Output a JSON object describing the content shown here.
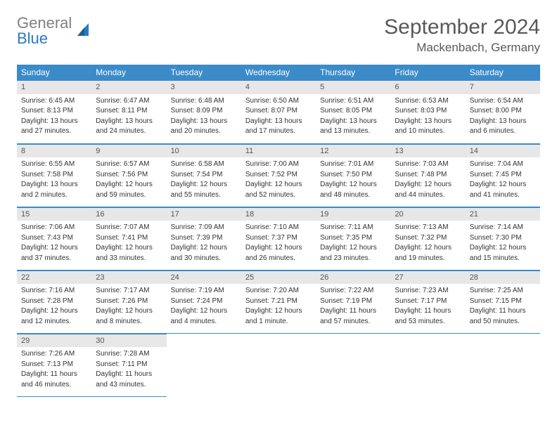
{
  "logo": {
    "text1": "General",
    "text2": "Blue"
  },
  "title": "September 2024",
  "location": "Mackenbach, Germany",
  "header_bg": "#3b8bc9",
  "daynum_bg": "#e7e7e7",
  "weekdays": [
    "Sunday",
    "Monday",
    "Tuesday",
    "Wednesday",
    "Thursday",
    "Friday",
    "Saturday"
  ],
  "weeks": [
    [
      {
        "n": "1",
        "sr": "Sunrise: 6:45 AM",
        "ss": "Sunset: 8:13 PM",
        "d1": "Daylight: 13 hours",
        "d2": "and 27 minutes."
      },
      {
        "n": "2",
        "sr": "Sunrise: 6:47 AM",
        "ss": "Sunset: 8:11 PM",
        "d1": "Daylight: 13 hours",
        "d2": "and 24 minutes."
      },
      {
        "n": "3",
        "sr": "Sunrise: 6:48 AM",
        "ss": "Sunset: 8:09 PM",
        "d1": "Daylight: 13 hours",
        "d2": "and 20 minutes."
      },
      {
        "n": "4",
        "sr": "Sunrise: 6:50 AM",
        "ss": "Sunset: 8:07 PM",
        "d1": "Daylight: 13 hours",
        "d2": "and 17 minutes."
      },
      {
        "n": "5",
        "sr": "Sunrise: 6:51 AM",
        "ss": "Sunset: 8:05 PM",
        "d1": "Daylight: 13 hours",
        "d2": "and 13 minutes."
      },
      {
        "n": "6",
        "sr": "Sunrise: 6:53 AM",
        "ss": "Sunset: 8:03 PM",
        "d1": "Daylight: 13 hours",
        "d2": "and 10 minutes."
      },
      {
        "n": "7",
        "sr": "Sunrise: 6:54 AM",
        "ss": "Sunset: 8:00 PM",
        "d1": "Daylight: 13 hours",
        "d2": "and 6 minutes."
      }
    ],
    [
      {
        "n": "8",
        "sr": "Sunrise: 6:55 AM",
        "ss": "Sunset: 7:58 PM",
        "d1": "Daylight: 13 hours",
        "d2": "and 2 minutes."
      },
      {
        "n": "9",
        "sr": "Sunrise: 6:57 AM",
        "ss": "Sunset: 7:56 PM",
        "d1": "Daylight: 12 hours",
        "d2": "and 59 minutes."
      },
      {
        "n": "10",
        "sr": "Sunrise: 6:58 AM",
        "ss": "Sunset: 7:54 PM",
        "d1": "Daylight: 12 hours",
        "d2": "and 55 minutes."
      },
      {
        "n": "11",
        "sr": "Sunrise: 7:00 AM",
        "ss": "Sunset: 7:52 PM",
        "d1": "Daylight: 12 hours",
        "d2": "and 52 minutes."
      },
      {
        "n": "12",
        "sr": "Sunrise: 7:01 AM",
        "ss": "Sunset: 7:50 PM",
        "d1": "Daylight: 12 hours",
        "d2": "and 48 minutes."
      },
      {
        "n": "13",
        "sr": "Sunrise: 7:03 AM",
        "ss": "Sunset: 7:48 PM",
        "d1": "Daylight: 12 hours",
        "d2": "and 44 minutes."
      },
      {
        "n": "14",
        "sr": "Sunrise: 7:04 AM",
        "ss": "Sunset: 7:45 PM",
        "d1": "Daylight: 12 hours",
        "d2": "and 41 minutes."
      }
    ],
    [
      {
        "n": "15",
        "sr": "Sunrise: 7:06 AM",
        "ss": "Sunset: 7:43 PM",
        "d1": "Daylight: 12 hours",
        "d2": "and 37 minutes."
      },
      {
        "n": "16",
        "sr": "Sunrise: 7:07 AM",
        "ss": "Sunset: 7:41 PM",
        "d1": "Daylight: 12 hours",
        "d2": "and 33 minutes."
      },
      {
        "n": "17",
        "sr": "Sunrise: 7:09 AM",
        "ss": "Sunset: 7:39 PM",
        "d1": "Daylight: 12 hours",
        "d2": "and 30 minutes."
      },
      {
        "n": "18",
        "sr": "Sunrise: 7:10 AM",
        "ss": "Sunset: 7:37 PM",
        "d1": "Daylight: 12 hours",
        "d2": "and 26 minutes."
      },
      {
        "n": "19",
        "sr": "Sunrise: 7:11 AM",
        "ss": "Sunset: 7:35 PM",
        "d1": "Daylight: 12 hours",
        "d2": "and 23 minutes."
      },
      {
        "n": "20",
        "sr": "Sunrise: 7:13 AM",
        "ss": "Sunset: 7:32 PM",
        "d1": "Daylight: 12 hours",
        "d2": "and 19 minutes."
      },
      {
        "n": "21",
        "sr": "Sunrise: 7:14 AM",
        "ss": "Sunset: 7:30 PM",
        "d1": "Daylight: 12 hours",
        "d2": "and 15 minutes."
      }
    ],
    [
      {
        "n": "22",
        "sr": "Sunrise: 7:16 AM",
        "ss": "Sunset: 7:28 PM",
        "d1": "Daylight: 12 hours",
        "d2": "and 12 minutes."
      },
      {
        "n": "23",
        "sr": "Sunrise: 7:17 AM",
        "ss": "Sunset: 7:26 PM",
        "d1": "Daylight: 12 hours",
        "d2": "and 8 minutes."
      },
      {
        "n": "24",
        "sr": "Sunrise: 7:19 AM",
        "ss": "Sunset: 7:24 PM",
        "d1": "Daylight: 12 hours",
        "d2": "and 4 minutes."
      },
      {
        "n": "25",
        "sr": "Sunrise: 7:20 AM",
        "ss": "Sunset: 7:21 PM",
        "d1": "Daylight: 12 hours",
        "d2": "and 1 minute."
      },
      {
        "n": "26",
        "sr": "Sunrise: 7:22 AM",
        "ss": "Sunset: 7:19 PM",
        "d1": "Daylight: 11 hours",
        "d2": "and 57 minutes."
      },
      {
        "n": "27",
        "sr": "Sunrise: 7:23 AM",
        "ss": "Sunset: 7:17 PM",
        "d1": "Daylight: 11 hours",
        "d2": "and 53 minutes."
      },
      {
        "n": "28",
        "sr": "Sunrise: 7:25 AM",
        "ss": "Sunset: 7:15 PM",
        "d1": "Daylight: 11 hours",
        "d2": "and 50 minutes."
      }
    ],
    [
      {
        "n": "29",
        "sr": "Sunrise: 7:26 AM",
        "ss": "Sunset: 7:13 PM",
        "d1": "Daylight: 11 hours",
        "d2": "and 46 minutes."
      },
      {
        "n": "30",
        "sr": "Sunrise: 7:28 AM",
        "ss": "Sunset: 7:11 PM",
        "d1": "Daylight: 11 hours",
        "d2": "and 43 minutes."
      },
      null,
      null,
      null,
      null,
      null
    ]
  ]
}
